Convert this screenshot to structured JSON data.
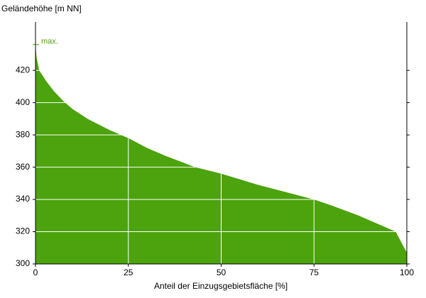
{
  "chart_data": {
    "type": "area",
    "ylabel": "Geländehöhe [m NN]",
    "xlabel": "Anteil der Einzugsgebietsfläche [%]",
    "annotation": "max.",
    "x": [
      0,
      0.3,
      1,
      3,
      5,
      7.5,
      10,
      14,
      20,
      25,
      30,
      35,
      43,
      50,
      60,
      70,
      75,
      80,
      87,
      92,
      97,
      100
    ],
    "values": [
      436,
      428,
      420,
      413,
      407,
      401,
      396,
      390,
      383,
      378,
      372,
      367,
      360,
      356,
      349,
      343,
      340,
      336,
      330,
      325,
      320,
      307
    ],
    "color": "#4ca30d",
    "xlim": [
      0,
      100
    ],
    "xticks": [
      0,
      25,
      50,
      75,
      100
    ],
    "ylim": [
      300,
      450
    ],
    "yticks": [
      300,
      320,
      340,
      360,
      380,
      400,
      420
    ],
    "grid": true
  }
}
